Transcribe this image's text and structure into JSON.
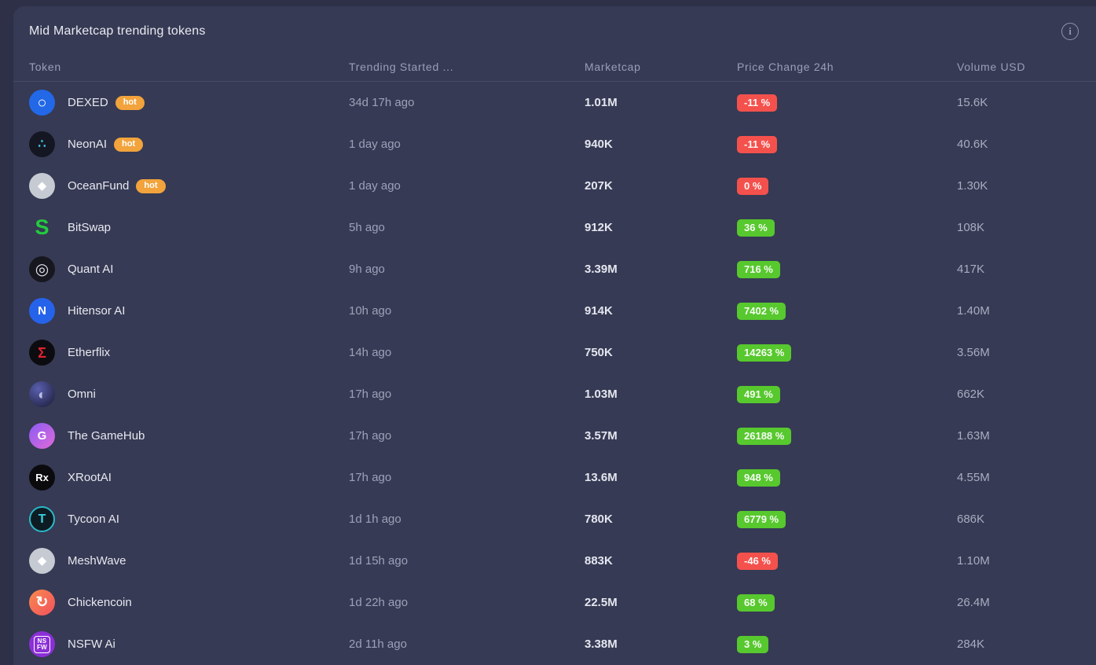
{
  "palette": {
    "page_bg": "#2d3047",
    "card_bg": "#363a54",
    "divider": "#454a66",
    "positive_badge": "#57c82e",
    "negative_badge": "#f4514d",
    "hot_badge": "#f2a33c"
  },
  "card": {
    "title": "Mid Marketcap trending tokens",
    "info_icon_glyph": "i"
  },
  "table": {
    "hot_label": "hot",
    "columns": [
      {
        "key": "token",
        "label": "Token"
      },
      {
        "key": "trending",
        "label": "Trending Started ..."
      },
      {
        "key": "marketcap",
        "label": "Marketcap"
      },
      {
        "key": "change",
        "label": "Price Change 24h"
      },
      {
        "key": "volume",
        "label": "Volume USD"
      }
    ],
    "rows": [
      {
        "name": "DEXED",
        "hot": true,
        "trending": "34d 17h ago",
        "marketcap": "1.01M",
        "change": "-11 %",
        "dir": "down",
        "volume": "15.6K",
        "icon": {
          "label": "dexed-token-icon",
          "bg": "#2268e7",
          "fg": "#ffffff",
          "glyph": "○",
          "size": 20,
          "bold": true
        }
      },
      {
        "name": "NeonAI",
        "hot": true,
        "trending": "1 day ago",
        "marketcap": "940K",
        "change": "-11 %",
        "dir": "down",
        "volume": "40.6K",
        "icon": {
          "label": "neonai-token-icon",
          "bg": "#141722",
          "fg": "#3fc9e8",
          "glyph": "∴",
          "size": 16,
          "bold": true
        }
      },
      {
        "name": "OceanFund",
        "hot": true,
        "trending": "1 day ago",
        "marketcap": "207K",
        "change": "0 %",
        "dir": "down",
        "volume": "1.30K",
        "icon": {
          "label": "oceanfund-token-icon",
          "bg": "#c6cad3",
          "fg": "#ffffff",
          "glyph": "◆",
          "size": 15,
          "bold": false
        }
      },
      {
        "name": "BitSwap",
        "hot": false,
        "trending": "5h ago",
        "marketcap": "912K",
        "change": "36 %",
        "dir": "up",
        "volume": "108K",
        "icon": {
          "label": "bitswap-token-icon",
          "bg": "transparent",
          "fg": "#23cc3f",
          "glyph": "S",
          "size": 27,
          "bold": true
        }
      },
      {
        "name": "Quant AI",
        "hot": false,
        "trending": "9h ago",
        "marketcap": "3.39M",
        "change": "716 %",
        "dir": "up",
        "volume": "417K",
        "icon": {
          "label": "quantai-token-icon",
          "bg": "#17171f",
          "fg": "#e0e0e8",
          "glyph": "◎",
          "size": 20,
          "bold": false
        }
      },
      {
        "name": "Hitensor AI",
        "hot": false,
        "trending": "10h ago",
        "marketcap": "914K",
        "change": "7402 %",
        "dir": "up",
        "volume": "1.40M",
        "icon": {
          "label": "hitensor-token-icon",
          "bg": "#2563eb",
          "fg": "#ffffff",
          "glyph": "N",
          "size": 15,
          "bold": true
        }
      },
      {
        "name": "Etherflix",
        "hot": false,
        "trending": "14h ago",
        "marketcap": "750K",
        "change": "14263 %",
        "dir": "up",
        "volume": "3.56M",
        "icon": {
          "label": "etherflix-token-icon",
          "bg": "#0c0c10",
          "fg": "#e02330",
          "glyph": "Σ",
          "size": 18,
          "bold": true
        }
      },
      {
        "name": "Omni",
        "hot": false,
        "trending": "17h ago",
        "marketcap": "1.03M",
        "change": "491 %",
        "dir": "up",
        "volume": "662K",
        "icon": {
          "label": "omni-token-icon",
          "bg": "radial-gradient(circle at 35% 30%, #5a5fae, #181a33)",
          "fg": "#b9bde6",
          "glyph": "◐",
          "size": 18,
          "bold": false
        }
      },
      {
        "name": "The GameHub",
        "hot": false,
        "trending": "17h ago",
        "marketcap": "3.57M",
        "change": "26188 %",
        "dir": "up",
        "volume": "1.63M",
        "icon": {
          "label": "gamehub-token-icon",
          "bg": "linear-gradient(135deg, #8a5cf5, #e06ad8)",
          "fg": "#ffffff",
          "glyph": "G",
          "size": 15,
          "bold": true
        }
      },
      {
        "name": "XRootAI",
        "hot": false,
        "trending": "17h ago",
        "marketcap": "13.6M",
        "change": "948 %",
        "dir": "up",
        "volume": "4.55M",
        "icon": {
          "label": "xrootai-token-icon",
          "bg": "#0b0b0e",
          "fg": "#ffffff",
          "glyph": "Rx",
          "size": 13,
          "bold": true
        }
      },
      {
        "name": "Tycoon AI",
        "hot": false,
        "trending": "1d 1h ago",
        "marketcap": "780K",
        "change": "6779 %",
        "dir": "up",
        "volume": "686K",
        "icon": {
          "label": "tycoonai-token-icon",
          "bg": "#0d1b22",
          "fg": "#3ad1df",
          "glyph": "T",
          "size": 16,
          "bold": true,
          "border": "#2bb8c8"
        }
      },
      {
        "name": "MeshWave",
        "hot": false,
        "trending": "1d 15h ago",
        "marketcap": "883K",
        "change": "-46 %",
        "dir": "down",
        "volume": "1.10M",
        "icon": {
          "label": "meshwave-token-icon",
          "bg": "#c6cad3",
          "fg": "#ffffff",
          "glyph": "◆",
          "size": 15,
          "bold": false
        }
      },
      {
        "name": "Chickencoin",
        "hot": false,
        "trending": "1d 22h ago",
        "marketcap": "22.5M",
        "change": "68 %",
        "dir": "up",
        "volume": "26.4M",
        "icon": {
          "label": "chickencoin-token-icon",
          "bg": "linear-gradient(135deg, #f88a4e, #f2505e)",
          "fg": "#ffffff",
          "glyph": "↻",
          "size": 19,
          "bold": true
        }
      },
      {
        "name": "NSFW Ai",
        "hot": false,
        "trending": "2d 11h ago",
        "marketcap": "3.38M",
        "change": "3 %",
        "dir": "up",
        "volume": "284K",
        "icon": {
          "label": "nsfwai-token-icon",
          "bg": "#8b2fd6",
          "fg": "#ffffff",
          "glyph": "NS\nFW",
          "size": 8,
          "bold": true,
          "boxed": true
        }
      }
    ]
  }
}
